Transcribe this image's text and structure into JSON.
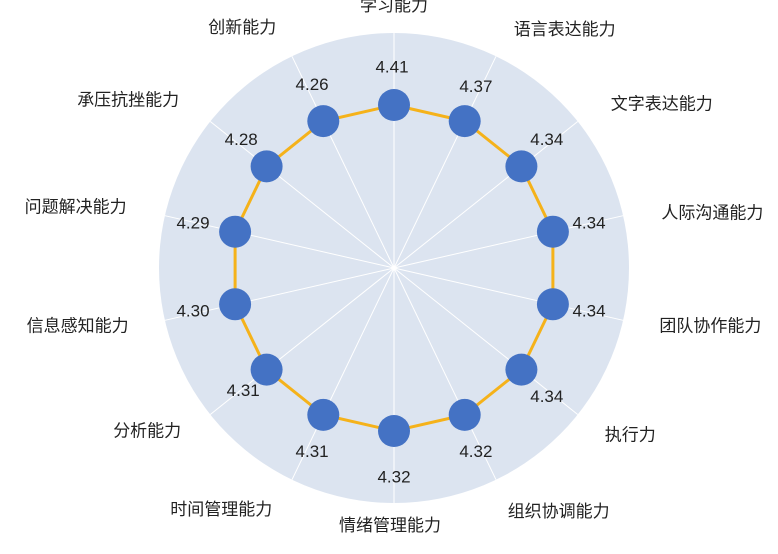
{
  "chart_data": {
    "type": "radar",
    "categories": [
      "学习能力",
      "语言表达能力",
      "文字表达能力",
      "人际沟通能力",
      "团队协作能力",
      "执行力",
      "组织协调能力",
      "情绪管理能力",
      "时间管理能力",
      "分析能力",
      "信息感知能力",
      "问题解决能力",
      "承压抗挫能力",
      "创新能力"
    ],
    "values": [
      4.41,
      4.37,
      4.34,
      4.34,
      4.34,
      4.34,
      4.32,
      4.32,
      4.31,
      4.31,
      4.3,
      4.29,
      4.28,
      4.26
    ],
    "value_labels": [
      "4.41",
      "4.37",
      "4.34",
      "4.34",
      "4.34",
      "4.34",
      "4.32",
      "4.32",
      "4.31",
      "4.31",
      "4.30",
      "4.29",
      "4.28",
      "4.26"
    ],
    "background_color": "#dce4f0",
    "line_color": "#f5b21a",
    "marker_color": "#4472c4",
    "grid": true
  }
}
